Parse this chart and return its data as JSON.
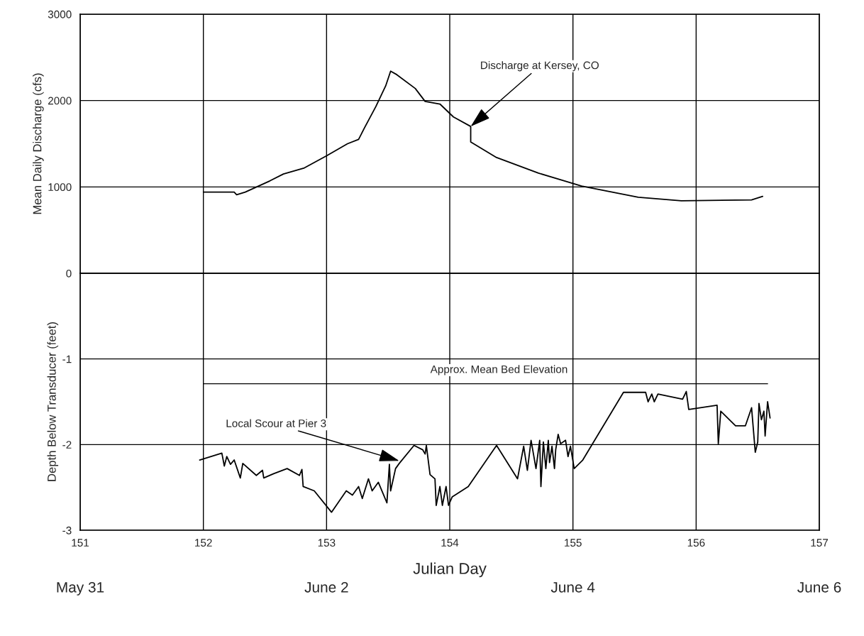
{
  "chart_data": [
    {
      "type": "line",
      "ylabel": "Mean Daily Discharge (cfs)",
      "xlim": [
        151,
        157
      ],
      "xticks": [
        151,
        152,
        153,
        154,
        155,
        156,
        157
      ],
      "ylim": [
        0,
        3000
      ],
      "yticks": [
        0,
        1000,
        2000,
        3000
      ],
      "grid": true,
      "tick_labels": "y",
      "legend": false,
      "series": [
        {
          "color": "#000000",
          "x": [
            152.0,
            152.25,
            152.27,
            152.34,
            152.54,
            152.65,
            152.82,
            153.0,
            153.17,
            153.26,
            153.31,
            153.4,
            153.48,
            153.52,
            153.57,
            153.72,
            153.8,
            153.92,
            154.03,
            154.17,
            154.17,
            154.38,
            154.72,
            155.07,
            155.53,
            155.88,
            156.45,
            156.54
          ],
          "values": [
            940,
            940,
            910,
            940,
            1070,
            1150,
            1220,
            1360,
            1500,
            1550,
            1690,
            1930,
            2170,
            2340,
            2300,
            2140,
            1990,
            1960,
            1810,
            1700,
            1520,
            1340,
            1160,
            1010,
            880,
            840,
            850,
            890
          ]
        }
      ],
      "annotations": [
        {
          "text": "Discharge at Kersey, CO",
          "x": 154.17,
          "y": 1700
        }
      ]
    },
    {
      "type": "line",
      "ylabel": "Depth Below Transducer (feet)",
      "xlabel": "Julian Day",
      "xlim": [
        151,
        157
      ],
      "xticks": [
        151,
        152,
        153,
        154,
        155,
        156,
        157
      ],
      "ylim": [
        -3,
        0
      ],
      "yticks": [
        -3,
        -2,
        -1,
        {
          "value": 0,
          "label": null
        }
      ],
      "grid": true,
      "legend": false,
      "series": [
        {
          "color": "#000000",
          "x": [
            151.97,
            152.15,
            152.17,
            152.19,
            152.22,
            152.25,
            152.3,
            152.32,
            152.43,
            152.48,
            152.49,
            152.57,
            152.68,
            152.78,
            152.8,
            152.81,
            152.9,
            153.04,
            153.16,
            153.21,
            153.26,
            153.29,
            153.34,
            153.37,
            153.42,
            153.49,
            153.51,
            153.52,
            153.56,
            153.59,
            153.71,
            153.78,
            153.8,
            153.81,
            153.84,
            153.88,
            153.89,
            153.92,
            153.94,
            153.97,
            153.99,
            154.02,
            154.15,
            154.38,
            154.55,
            154.6,
            154.63,
            154.66,
            154.7,
            154.73,
            154.74,
            154.76,
            154.78,
            154.8,
            154.81,
            154.83,
            154.85,
            154.86,
            154.88,
            154.9,
            154.94,
            154.96,
            154.98,
            155.01,
            155.08,
            155.41,
            155.59,
            155.61,
            155.64,
            155.66,
            155.69,
            155.89,
            155.92,
            155.94,
            156.17,
            156.18,
            156.2,
            156.32,
            156.4,
            156.45,
            156.48,
            156.5,
            156.51,
            156.53,
            156.55,
            156.56,
            156.58,
            156.6
          ],
          "values": [
            -2.18,
            -2.1,
            -2.25,
            -2.14,
            -2.23,
            -2.18,
            -2.39,
            -2.22,
            -2.36,
            -2.3,
            -2.39,
            -2.34,
            -2.28,
            -2.36,
            -2.29,
            -2.49,
            -2.54,
            -2.79,
            -2.54,
            -2.59,
            -2.49,
            -2.63,
            -2.4,
            -2.54,
            -2.44,
            -2.68,
            -2.23,
            -2.54,
            -2.28,
            -2.22,
            -2.01,
            -2.06,
            -2.11,
            -2.01,
            -2.35,
            -2.4,
            -2.71,
            -2.49,
            -2.71,
            -2.49,
            -2.71,
            -2.61,
            -2.49,
            -2.01,
            -2.4,
            -2.02,
            -2.3,
            -1.95,
            -2.28,
            -1.95,
            -2.49,
            -1.97,
            -2.28,
            -1.95,
            -2.21,
            -2.02,
            -2.28,
            -2.06,
            -1.88,
            -1.99,
            -1.95,
            -2.14,
            -2.02,
            -2.28,
            -2.18,
            -1.39,
            -1.39,
            -1.5,
            -1.41,
            -1.5,
            -1.41,
            -1.47,
            -1.38,
            -1.59,
            -1.54,
            -1.99,
            -1.61,
            -1.78,
            -1.78,
            -1.57,
            -2.09,
            -1.97,
            -1.52,
            -1.71,
            -1.61,
            -1.9,
            -1.5,
            -1.69
          ]
        }
      ],
      "ref_lines": [
        {
          "axis": "y",
          "value": -1.29,
          "label": "Approx. Mean Bed Elevation",
          "color": "#000000"
        }
      ],
      "annotations": [
        {
          "text": "Local Scour at Pier 3",
          "x": 153.59,
          "y": -2.19
        },
        "May 31",
        "June 2",
        "June 4",
        "June 6"
      ]
    }
  ]
}
